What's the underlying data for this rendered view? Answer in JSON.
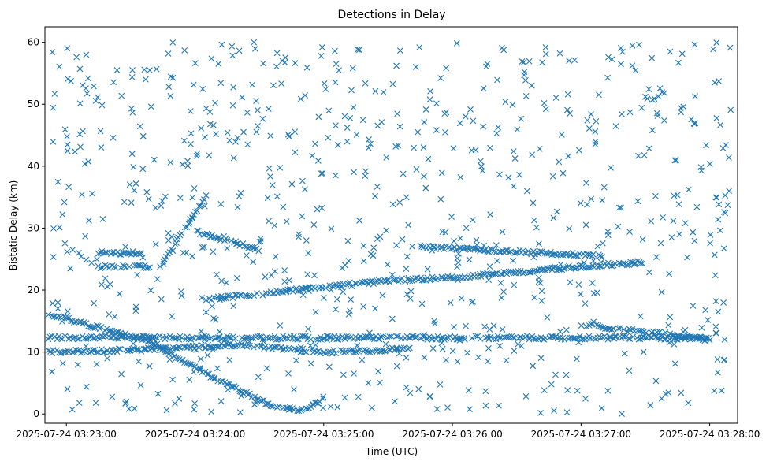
{
  "chart_data": {
    "type": "scatter",
    "title": "Detections in Delay",
    "xlabel": "Time (UTC)",
    "ylabel": "Bistatic Delay (km)",
    "x_ticks": [
      "2025-07-24 03:23:00",
      "2025-07-24 03:24:00",
      "2025-07-24 03:25:00",
      "2025-07-24 03:26:00",
      "2025-07-24 03:27:00",
      "2025-07-24 03:28:00"
    ],
    "y_ticks": [
      "0",
      "10",
      "20",
      "30",
      "40",
      "50",
      "60"
    ],
    "xlim": [
      "2025-07-24 03:22:50",
      "2025-07-24 03:28:13"
    ],
    "ylim": [
      -1.5,
      62.5
    ],
    "grid": false,
    "marker": "x",
    "color": "#1f77b4",
    "tracks": [
      {
        "x": [
          "2025-07-24 03:22:50",
          "2025-07-24 03:23:40",
          "2025-07-24 03:24:05",
          "2025-07-24 03:24:20",
          "2025-07-24 03:24:35",
          "2025-07-24 03:24:50",
          "2025-07-24 03:24:55",
          "2025-07-24 03:25:00"
        ],
        "y": [
          16.3,
          11.5,
          6.5,
          4.0,
          1.5,
          0.6,
          1.5,
          2.3
        ]
      },
      {
        "x": [
          "2025-07-24 03:22:50",
          "2025-07-24 03:28:00"
        ],
        "y": [
          12.3,
          12.3
        ]
      },
      {
        "x": [
          "2025-07-24 03:22:50",
          "2025-07-24 03:23:30",
          "2025-07-24 03:24:20",
          "2025-07-24 03:25:00",
          "2025-07-24 03:25:40"
        ],
        "y": [
          10.0,
          10.3,
          11.2,
          10.0,
          10.5
        ]
      },
      {
        "x": [
          "2025-07-24 03:23:15",
          "2025-07-24 03:23:35"
        ],
        "y": [
          26.0,
          26.0
        ]
      },
      {
        "x": [
          "2025-07-24 03:23:15",
          "2025-07-24 03:23:40"
        ],
        "y": [
          23.8,
          23.8
        ]
      },
      {
        "x": [
          "2025-07-24 03:23:45",
          "2025-07-24 03:24:05"
        ],
        "y": [
          24.5,
          35.0
        ]
      },
      {
        "x": [
          "2025-07-24 03:24:00",
          "2025-07-24 03:24:30"
        ],
        "y": [
          29.5,
          26.5
        ]
      },
      {
        "x": [
          "2025-07-24 03:24:05",
          "2025-07-24 03:25:30",
          "2025-07-24 03:26:00",
          "2025-07-24 03:27:00",
          "2025-07-24 03:27:30"
        ],
        "y": [
          18.5,
          21.5,
          22.0,
          23.8,
          24.5
        ]
      },
      {
        "x": [
          "2025-07-24 03:25:45",
          "2025-07-24 03:27:10"
        ],
        "y": [
          27.0,
          25.5
        ]
      },
      {
        "x": [
          "2025-07-24 03:27:00",
          "2025-07-24 03:28:00"
        ],
        "y": [
          14.5,
          12.0
        ]
      }
    ],
    "noise_count": 820,
    "noise_y_range": [
      0,
      60
    ]
  }
}
